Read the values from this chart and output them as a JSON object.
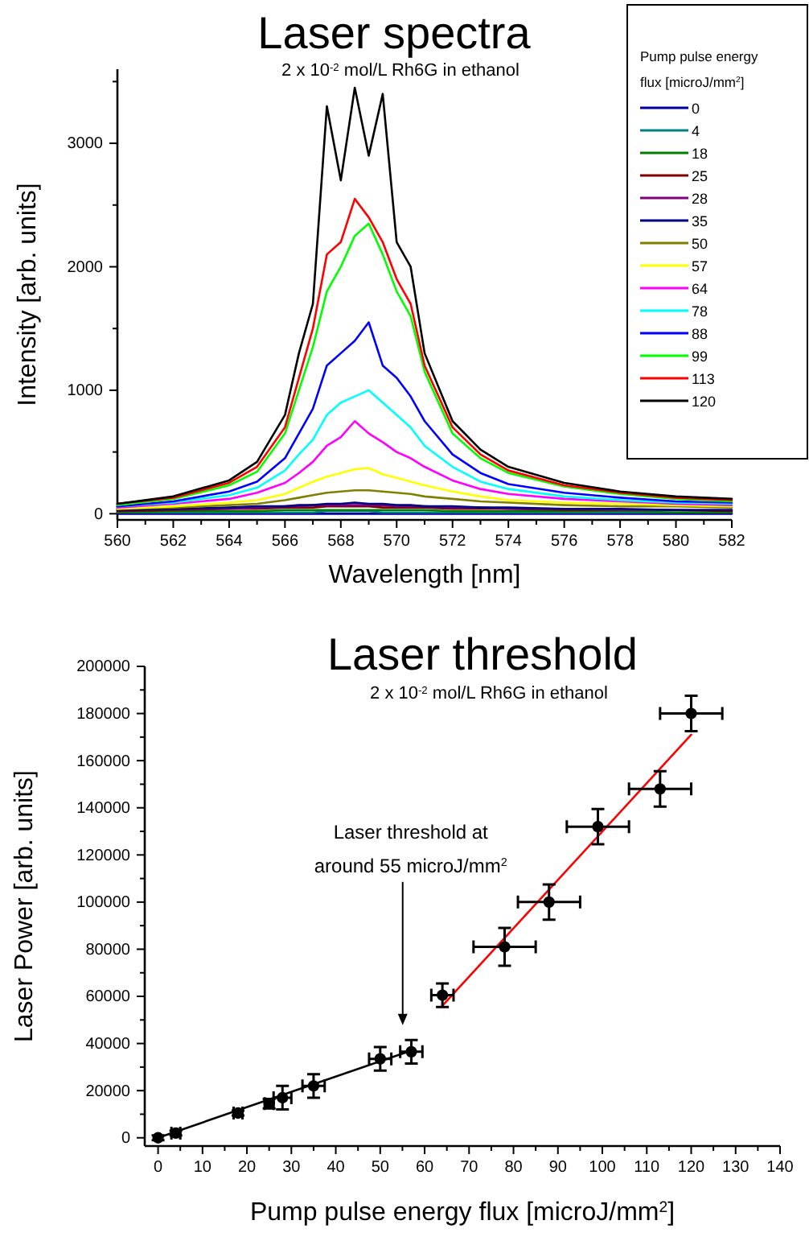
{
  "chart_data": [
    {
      "type": "line",
      "title": "Laser spectra",
      "subtitle": "2 x 10$^{-2}$ mol/L Rh6G in ethanol",
      "xlabel": "Wavelength [nm]",
      "ylabel": "Intensity [arb. units]",
      "legend_title": "Pump pulse energy flux [microJ/mm$^{2}$]",
      "legend": "top right",
      "line_style": "solid",
      "xlim": [
        560,
        582
      ],
      "ylim": [
        -50,
        3600
      ],
      "xticks": [
        560,
        {
          "value": 561,
          "label": null
        },
        562,
        {
          "value": 563,
          "label": null
        },
        564,
        {
          "value": 565,
          "label": null
        },
        566,
        {
          "value": 567,
          "label": null
        },
        568,
        {
          "value": 569,
          "label": null
        },
        570,
        {
          "value": 571,
          "label": null
        },
        572,
        {
          "value": 573,
          "label": null
        },
        574,
        {
          "value": 575,
          "label": null
        },
        576,
        {
          "value": 577,
          "label": null
        },
        578,
        {
          "value": 579,
          "label": null
        },
        580,
        {
          "value": 581,
          "label": null
        },
        582
      ],
      "yticks": [
        0,
        {
          "value": 500,
          "label": null
        },
        1000,
        {
          "value": 1500,
          "label": null
        },
        2000,
        {
          "value": 2500,
          "label": null
        },
        3000,
        {
          "value": 3500,
          "label": null
        }
      ],
      "x": [
        560,
        562,
        564,
        565,
        566,
        566.5,
        567,
        567.5,
        568,
        568.5,
        569,
        569.5,
        570,
        570.5,
        571,
        572,
        573,
        574,
        576,
        578,
        580,
        582
      ],
      "series": [
        {
          "name": "0",
          "color": "#0000a0",
          "values": [
            0,
            0,
            0,
            0,
            0,
            0,
            0,
            0,
            0,
            0,
            0,
            0,
            0,
            0,
            0,
            0,
            0,
            0,
            0,
            0,
            0,
            0
          ]
        },
        {
          "name": "4",
          "color": "#008080",
          "values": [
            10,
            10,
            10,
            10,
            10,
            10,
            10,
            20,
            20,
            20,
            20,
            10,
            10,
            10,
            10,
            10,
            10,
            10,
            10,
            10,
            10,
            10
          ]
        },
        {
          "name": "18",
          "color": "#008000",
          "values": [
            10,
            20,
            20,
            20,
            30,
            30,
            30,
            30,
            30,
            30,
            30,
            30,
            30,
            30,
            30,
            20,
            20,
            20,
            20,
            20,
            10,
            10
          ]
        },
        {
          "name": "25",
          "color": "#800000",
          "values": [
            20,
            30,
            40,
            40,
            50,
            50,
            50,
            60,
            60,
            60,
            60,
            50,
            50,
            50,
            50,
            40,
            40,
            40,
            30,
            30,
            30,
            20
          ]
        },
        {
          "name": "28",
          "color": "#800080",
          "values": [
            30,
            40,
            40,
            50,
            60,
            60,
            70,
            70,
            70,
            70,
            70,
            70,
            60,
            60,
            60,
            50,
            50,
            40,
            40,
            30,
            30,
            30
          ]
        },
        {
          "name": "35",
          "color": "#000080",
          "values": [
            30,
            40,
            50,
            60,
            60,
            70,
            70,
            80,
            80,
            90,
            80,
            80,
            70,
            70,
            60,
            60,
            50,
            50,
            40,
            40,
            30,
            30
          ]
        },
        {
          "name": "50",
          "color": "#808000",
          "values": [
            40,
            50,
            70,
            80,
            110,
            130,
            150,
            170,
            180,
            190,
            190,
            180,
            170,
            160,
            140,
            120,
            100,
            90,
            70,
            60,
            60,
            50
          ]
        },
        {
          "name": "57",
          "color": "#ffff00",
          "values": [
            40,
            60,
            90,
            110,
            160,
            210,
            260,
            300,
            330,
            360,
            370,
            320,
            290,
            260,
            230,
            180,
            140,
            110,
            90,
            80,
            70,
            60
          ]
        },
        {
          "name": "64",
          "color": "#ff00ff",
          "values": [
            50,
            80,
            120,
            170,
            250,
            330,
            420,
            550,
            620,
            750,
            650,
            580,
            500,
            450,
            380,
            270,
            200,
            160,
            120,
            100,
            80,
            70
          ]
        },
        {
          "name": "78",
          "color": "#00ffff",
          "values": [
            60,
            90,
            150,
            210,
            350,
            480,
            600,
            800,
            900,
            950,
            1000,
            900,
            800,
            700,
            550,
            380,
            260,
            200,
            140,
            110,
            90,
            80
          ]
        },
        {
          "name": "88",
          "color": "#0000ff",
          "values": [
            60,
            100,
            180,
            260,
            450,
            650,
            850,
            1200,
            1300,
            1400,
            1550,
            1200,
            1100,
            950,
            750,
            480,
            330,
            240,
            170,
            130,
            100,
            90
          ]
        },
        {
          "name": "99",
          "color": "#00ff00",
          "values": [
            70,
            120,
            230,
            340,
            650,
            1000,
            1350,
            1800,
            2000,
            2250,
            2350,
            2100,
            1800,
            1600,
            1150,
            650,
            450,
            330,
            220,
            160,
            120,
            100
          ]
        },
        {
          "name": "113",
          "color": "#ff0000",
          "values": [
            80,
            130,
            250,
            380,
            700,
            1100,
            1500,
            2100,
            2200,
            2550,
            2400,
            2200,
            1900,
            1700,
            1200,
            700,
            480,
            350,
            230,
            170,
            130,
            110
          ]
        },
        {
          "name": "120",
          "color": "#000000",
          "values": [
            80,
            140,
            270,
            420,
            800,
            1300,
            1700,
            3300,
            2700,
            3450,
            2900,
            3400,
            2200,
            2000,
            1300,
            750,
            520,
            380,
            250,
            180,
            140,
            120
          ]
        }
      ]
    },
    {
      "type": "scatter",
      "title": "Laser threshold",
      "subtitle": "2 x 10$^{-2}$ mol/L Rh6G in ethanol",
      "xlabel": "Pump pulse energy flux [microJ/mm$^{2}$]",
      "ylabel": "Laser Power [arb. units]",
      "line_style": "solid",
      "xlim": [
        -3,
        140
      ],
      "ylim": [
        -3500,
        200000
      ],
      "xticks": [
        0,
        {
          "value": 5,
          "label": null
        },
        10,
        {
          "value": 15,
          "label": null
        },
        20,
        {
          "value": 25,
          "label": null
        },
        30,
        {
          "value": 35,
          "label": null
        },
        40,
        {
          "value": 45,
          "label": null
        },
        50,
        {
          "value": 55,
          "label": null
        },
        60,
        {
          "value": 65,
          "label": null
        },
        70,
        {
          "value": 75,
          "label": null
        },
        80,
        {
          "value": 85,
          "label": null
        },
        90,
        {
          "value": 95,
          "label": null
        },
        100,
        {
          "value": 105,
          "label": null
        },
        110,
        {
          "value": 115,
          "label": null
        },
        120,
        {
          "value": 125,
          "label": null
        },
        130,
        {
          "value": 135,
          "label": null
        },
        140
      ],
      "yticks": [
        0,
        {
          "value": 10000,
          "label": null
        },
        20000,
        {
          "value": 30000,
          "label": null
        },
        40000,
        {
          "value": 50000,
          "label": null
        },
        60000,
        {
          "value": 70000,
          "label": null
        },
        80000,
        {
          "value": 90000,
          "label": null
        },
        100000,
        {
          "value": 110000,
          "label": null
        },
        120000,
        {
          "value": 130000,
          "label": null
        },
        140000,
        {
          "value": 150000,
          "label": null
        },
        160000,
        {
          "value": 170000,
          "label": null
        },
        180000,
        {
          "value": 190000,
          "label": null
        },
        200000
      ],
      "series": [
        {
          "type": "line",
          "marker": "none",
          "color": "#000000",
          "x": [
            0,
            57
          ],
          "values": [
            0,
            37000
          ]
        },
        {
          "type": "line",
          "marker": "none",
          "color": "#ff0000",
          "x": [
            64,
            120
          ],
          "values": [
            56000,
            171000
          ]
        },
        {
          "marker": "circle",
          "color": "#000000",
          "x": [
            0,
            4,
            18,
            25,
            28,
            35,
            50,
            57,
            64,
            78,
            88,
            99,
            113,
            120
          ],
          "values": [
            0,
            2000,
            10500,
            14500,
            17000,
            22000,
            33500,
            36500,
            60500,
            81000,
            100000,
            132000,
            148000,
            180000
          ],
          "errors": [
            1000,
            1000,
            1000,
            2000,
            5000,
            5000,
            5000,
            5000,
            5000,
            8000,
            7500,
            7500,
            7500,
            7500
          ],
          "xerrors": [
            null,
            1,
            1,
            1,
            2,
            2.5,
            2.5,
            2.5,
            2.5,
            7,
            7,
            7,
            7,
            7
          ]
        }
      ],
      "annotations": [
        "Laser threshold at around 55 microJ/mm$^{2}$"
      ]
    }
  ]
}
